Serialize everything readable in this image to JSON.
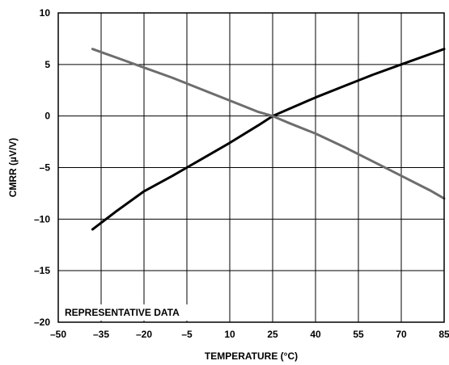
{
  "chart_data": {
    "type": "line",
    "xlabel": "TEMPERATURE (°C)",
    "ylabel": "CMRR (µV/V)",
    "xlim": [
      -50,
      85
    ],
    "ylim": [
      -20,
      10
    ],
    "x_ticks": [
      -50,
      -35,
      -20,
      -5,
      10,
      25,
      40,
      55,
      70,
      85
    ],
    "x_tick_labels": [
      "–50",
      "–35",
      "–20",
      "–5",
      "10",
      "25",
      "40",
      "55",
      "70",
      "85"
    ],
    "y_ticks": [
      10,
      5,
      0,
      -5,
      -10,
      -15,
      -20
    ],
    "y_tick_labels": [
      "10",
      "5",
      "0",
      "–5",
      "–10",
      "–15",
      "–20"
    ],
    "grid": true,
    "annotation": "REPRESENTATIVE DATA",
    "series": [
      {
        "color": "#000000",
        "x": [
          -38,
          -30,
          -20,
          -10,
          -5,
          0,
          10,
          20,
          25,
          30,
          40,
          50,
          60,
          70,
          80,
          85
        ],
        "y": [
          -11.0,
          -9.3,
          -7.3,
          -5.8,
          -5.0,
          -4.2,
          -2.6,
          -0.9,
          0.0,
          0.6,
          1.8,
          2.9,
          4.0,
          5.0,
          6.0,
          6.5
        ]
      },
      {
        "color": "#6d6d6d",
        "x": [
          -38,
          -30,
          -20,
          -10,
          0,
          10,
          20,
          25,
          30,
          40,
          50,
          60,
          70,
          80,
          85
        ],
        "y": [
          6.5,
          5.7,
          4.7,
          3.7,
          2.6,
          1.5,
          0.4,
          0.0,
          -0.6,
          -1.7,
          -3.0,
          -4.4,
          -5.8,
          -7.2,
          -8.0
        ]
      }
    ]
  }
}
